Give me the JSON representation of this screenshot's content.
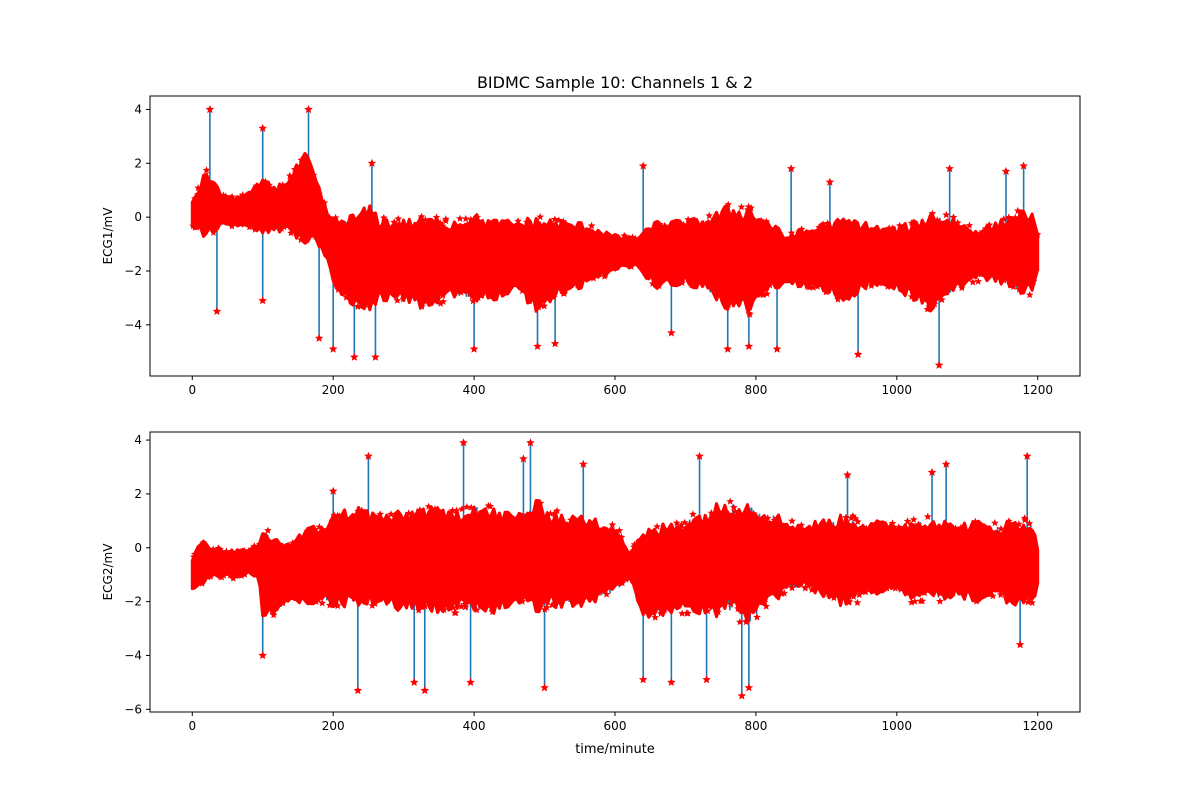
{
  "figure": {
    "title": "BIDMC Sample 10: Channels 1 & 2",
    "xlabel": "time/minute"
  },
  "colors": {
    "signal": "#1f77b4",
    "peaks": "#ff0000",
    "axes": "#000000",
    "background": "#ffffff"
  },
  "chart_data": [
    {
      "type": "line",
      "title": "BIDMC Sample 10: Channels 1 & 2",
      "xlabel": "",
      "ylabel": "ECG1/mV",
      "xlim": [
        -60,
        1260
      ],
      "ylim": [
        -5.9,
        4.5
      ],
      "xticks": [
        0,
        200,
        400,
        600,
        800,
        1000,
        1200
      ],
      "yticks": [
        -4,
        -2,
        0,
        2,
        4
      ],
      "grid": false,
      "series": [
        {
          "role": "signal",
          "x": [
            0,
            10,
            20,
            40,
            60,
            80,
            100,
            120,
            140,
            160,
            170,
            180,
            190,
            200,
            210,
            230,
            250,
            270,
            300,
            330,
            360,
            400,
            430,
            460,
            490,
            520,
            560,
            600,
            630,
            660,
            700,
            730,
            760,
            790,
            820,
            840,
            870,
            900,
            930,
            960,
            990,
            1020,
            1050,
            1080,
            1110,
            1140,
            1170,
            1190,
            1200
          ],
          "center": [
            0.1,
            0.3,
            0.5,
            0.3,
            0.2,
            0.3,
            0.4,
            0.3,
            0.5,
            0.7,
            0.6,
            0.0,
            -0.6,
            -1.2,
            -1.5,
            -1.6,
            -1.5,
            -1.6,
            -1.6,
            -1.7,
            -1.6,
            -1.5,
            -1.6,
            -1.4,
            -1.8,
            -1.5,
            -1.4,
            -1.3,
            -1.3,
            -1.4,
            -1.3,
            -1.4,
            -1.5,
            -1.6,
            -1.4,
            -1.6,
            -1.5,
            -1.5,
            -1.6,
            -1.4,
            -1.5,
            -1.6,
            -1.7,
            -1.4,
            -1.4,
            -1.3,
            -1.3,
            -1.3,
            -1.3
          ],
          "amplitude": [
            0.5,
            0.8,
            1.2,
            0.6,
            0.5,
            0.6,
            0.9,
            0.8,
            1.0,
            1.6,
            1.2,
            1.0,
            0.9,
            1.1,
            1.4,
            1.6,
            1.8,
            1.5,
            1.4,
            1.6,
            1.4,
            1.5,
            1.4,
            1.2,
            1.7,
            1.3,
            1.1,
            0.6,
            0.5,
            1.2,
            1.1,
            1.3,
            1.8,
            1.9,
            1.2,
            0.9,
            1.0,
            1.2,
            1.5,
            1.1,
            1.0,
            1.3,
            1.8,
            1.3,
            0.9,
            1.0,
            1.4,
            1.5,
            0.6
          ],
          "spikes": [
            [
              25,
              4.0
            ],
            [
              35,
              -3.5
            ],
            [
              100,
              3.3
            ],
            [
              100,
              -3.1
            ],
            [
              165,
              4.0
            ],
            [
              180,
              -4.5
            ],
            [
              200,
              -4.9
            ],
            [
              230,
              -5.2
            ],
            [
              260,
              -5.2
            ],
            [
              255,
              2.0
            ],
            [
              400,
              -4.9
            ],
            [
              490,
              -4.8
            ],
            [
              515,
              -4.7
            ],
            [
              640,
              1.9
            ],
            [
              680,
              -4.3
            ],
            [
              760,
              -4.9
            ],
            [
              790,
              -4.8
            ],
            [
              830,
              -4.9
            ],
            [
              850,
              1.8
            ],
            [
              905,
              1.3
            ],
            [
              945,
              -5.1
            ],
            [
              1060,
              -5.5
            ],
            [
              1075,
              1.8
            ],
            [
              1155,
              1.7
            ],
            [
              1180,
              1.9
            ]
          ]
        },
        {
          "role": "peaks",
          "marker": "star",
          "note": "detected peaks plotted over the signal"
        }
      ]
    },
    {
      "type": "line",
      "title": "",
      "xlabel": "time/minute",
      "ylabel": "ECG2/mV",
      "xlim": [
        -60,
        1260
      ],
      "ylim": [
        -6.1,
        4.3
      ],
      "xticks": [
        0,
        200,
        400,
        600,
        800,
        1000,
        1200
      ],
      "yticks": [
        -6,
        -4,
        -2,
        0,
        2,
        4
      ],
      "grid": false,
      "series": [
        {
          "role": "signal",
          "x": [
            0,
            10,
            20,
            40,
            60,
            80,
            95,
            100,
            120,
            140,
            160,
            180,
            200,
            230,
            260,
            300,
            330,
            360,
            400,
            430,
            460,
            490,
            520,
            560,
            600,
            620,
            640,
            670,
            700,
            730,
            760,
            790,
            820,
            840,
            870,
            900,
            930,
            960,
            990,
            1020,
            1050,
            1080,
            1110,
            1140,
            1170,
            1190,
            1200
          ],
          "center": [
            -1.0,
            -0.6,
            -0.5,
            -0.6,
            -0.6,
            -0.5,
            -0.5,
            -1.0,
            -1.0,
            -0.9,
            -0.7,
            -0.6,
            -0.5,
            -0.3,
            -0.4,
            -0.5,
            -0.4,
            -0.5,
            -0.4,
            -0.5,
            -0.4,
            -0.3,
            -0.5,
            -0.5,
            -0.4,
            -0.6,
            -1.0,
            -0.8,
            -0.7,
            -0.6,
            -0.3,
            -0.6,
            -0.4,
            -0.3,
            -0.3,
            -0.4,
            -0.5,
            -0.4,
            -0.3,
            -0.5,
            -0.4,
            -0.5,
            -0.5,
            -0.5,
            -0.6,
            -0.6,
            -0.7
          ],
          "amplitude": [
            0.5,
            0.9,
            0.6,
            0.5,
            0.5,
            0.4,
            0.6,
            1.6,
            1.3,
            1.1,
            1.3,
            1.4,
            1.6,
            1.8,
            1.6,
            1.7,
            1.9,
            1.7,
            2.0,
            1.8,
            1.6,
            1.9,
            1.7,
            1.5,
            1.3,
            0.4,
            1.5,
            1.6,
            1.7,
            1.9,
            2.0,
            2.2,
            1.7,
            1.3,
            1.1,
            1.4,
            1.6,
            1.3,
            1.2,
            1.4,
            1.5,
            1.3,
            1.4,
            1.3,
            1.5,
            1.6,
            0.7
          ],
          "spikes": [
            [
              100,
              -4.0
            ],
            [
              200,
              2.1
            ],
            [
              235,
              -5.3
            ],
            [
              250,
              3.4
            ],
            [
              315,
              -5.0
            ],
            [
              330,
              -5.3
            ],
            [
              385,
              3.9
            ],
            [
              395,
              -5.0
            ],
            [
              470,
              3.3
            ],
            [
              480,
              3.9
            ],
            [
              500,
              -5.2
            ],
            [
              555,
              3.1
            ],
            [
              640,
              -4.9
            ],
            [
              680,
              -5.0
            ],
            [
              720,
              3.4
            ],
            [
              730,
              -4.9
            ],
            [
              780,
              -5.5
            ],
            [
              790,
              -5.2
            ],
            [
              930,
              2.7
            ],
            [
              1050,
              2.8
            ],
            [
              1070,
              3.1
            ],
            [
              1175,
              -3.6
            ],
            [
              1185,
              3.4
            ]
          ]
        },
        {
          "role": "peaks",
          "marker": "star",
          "note": "detected peaks plotted over the signal"
        }
      ]
    }
  ]
}
